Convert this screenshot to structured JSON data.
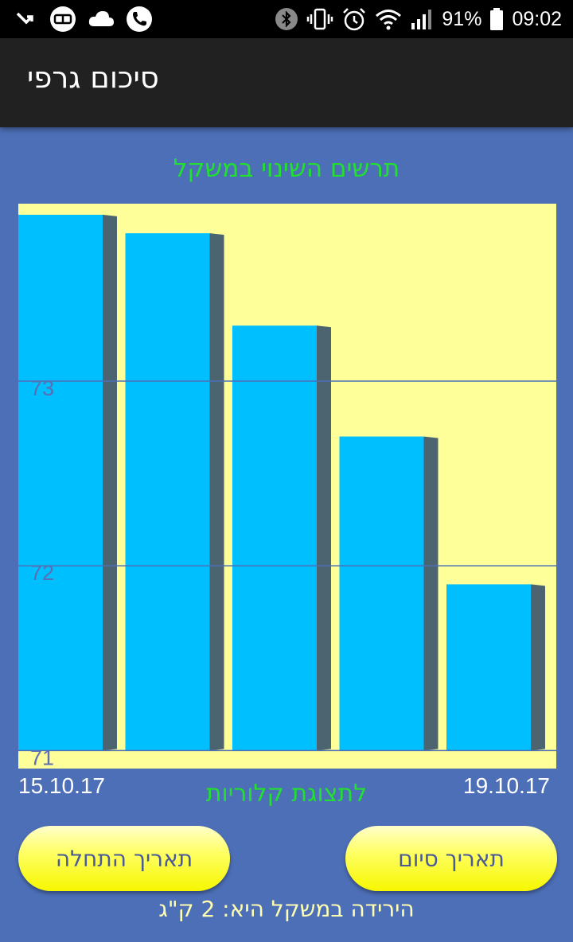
{
  "status_bar": {
    "battery": "91%",
    "time": "09:02",
    "icons": [
      "missed-call-icon",
      "app-badge-icon",
      "cloud-icon",
      "phone-icon",
      "bluetooth-icon",
      "vibrate-icon",
      "alarm-icon",
      "wifi-icon",
      "signal-icon",
      "battery-icon"
    ]
  },
  "app_bar": {
    "title": "סיכום גרפי"
  },
  "chart_data": {
    "type": "bar",
    "title": "תרשים השינוי במשקל",
    "values": [
      73.9,
      73.8,
      73.3,
      72.7,
      71.9
    ],
    "y_ticks": [
      "73",
      "72",
      "71"
    ],
    "y_tick_values": [
      73,
      72,
      71
    ],
    "ylim": [
      70.92,
      73.96
    ],
    "grid": true,
    "bar_color": "#00bfff",
    "bar_shadow_color": "#4b6470",
    "background_color": "#ffff99",
    "grid_color": "#4d6fb7",
    "x_start_label": "15.10.17",
    "x_end_label": "19.10.17"
  },
  "calorie_link": "לתצוגת קלוריות",
  "buttons": {
    "start_date": "תאריך התחלה",
    "end_date": "תאריך סיום"
  },
  "summary": "הירידה במשקל היא: 2 ק\"ג"
}
